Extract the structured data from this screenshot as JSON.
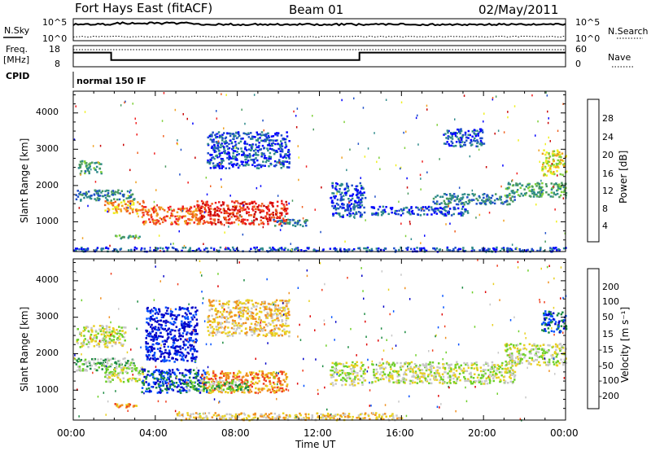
{
  "header": {
    "station": "Fort Hays East (fitACF)",
    "beam": "Beam 01",
    "date": "02/May/2011"
  },
  "noise_panel": {
    "left_label": "N.Sky",
    "right_label": "N.Search",
    "left_ticks": [
      "10^5",
      "10^0"
    ],
    "right_ticks": [
      "10^5",
      "10^0"
    ]
  },
  "freq_panel": {
    "left_label_1": "Freq.",
    "left_label_2": "[MHz]",
    "left_ticks": [
      "18",
      "8"
    ],
    "right_label": "Nave",
    "right_ticks": [
      "60",
      "0"
    ],
    "freq_steps": [
      {
        "hour": 0,
        "mhz": 15
      },
      {
        "hour": 1.85,
        "mhz": 15
      },
      {
        "hour": 1.85,
        "mhz": 10.8
      },
      {
        "hour": 13.95,
        "mhz": 10.8
      },
      {
        "hour": 13.95,
        "mhz": 15
      },
      {
        "hour": 24,
        "mhz": 15
      }
    ]
  },
  "cpid": {
    "label": "CPID",
    "value": "normal 150 IF"
  },
  "power_panel": {
    "ylabel": "Slant Range [km]",
    "yticks": [
      "4000",
      "3000",
      "2000",
      "1000"
    ],
    "colorbar_label": "Power [dB]",
    "colorbar_ticks": [
      "28",
      "24",
      "20",
      "16",
      "12",
      "8",
      "4"
    ],
    "colors": [
      "#0000ff",
      "#1e4fc8",
      "#2d8a8a",
      "#4a9a60",
      "#7fd03a",
      "#f0f020",
      "#f0a020",
      "#f06020",
      "#f02020",
      "#c80000"
    ]
  },
  "velocity_panel": {
    "ylabel": "Slant Range [km]",
    "yticks": [
      "4000",
      "3000",
      "2000",
      "1000"
    ],
    "colorbar_label": "Velocity [m s⁻¹]",
    "colorbar_ticks": [
      "200",
      "100",
      "50",
      "15",
      "-15",
      "-50",
      "-100",
      "-200"
    ],
    "colors": [
      "#0000c8",
      "#0050ff",
      "#1a8a40",
      "#6ed028",
      "#c8c8c8",
      "#e8d020",
      "#f09020",
      "#f04020",
      "#e00000"
    ]
  },
  "xaxis": {
    "ticks": [
      "00:00",
      "04:00",
      "08:00",
      "12:00",
      "16:00",
      "20:00",
      "00:00"
    ],
    "label": "Time UT"
  },
  "chart_data": {
    "type": "heatmap",
    "x_range_hours": [
      0,
      24
    ],
    "y_range_km": [
      180,
      4600
    ],
    "power_regions": [
      {
        "t0": 0.2,
        "t1": 1.4,
        "r0": 2350,
        "r1": 2700,
        "level": 3
      },
      {
        "t0": 0.1,
        "t1": 3.0,
        "r0": 1600,
        "r1": 1900,
        "level": 2
      },
      {
        "t0": 1.5,
        "t1": 3.4,
        "r0": 1250,
        "r1": 1600,
        "level": 6
      },
      {
        "t0": 3.3,
        "t1": 6.3,
        "r0": 950,
        "r1": 1450,
        "level": 7
      },
      {
        "t0": 6.0,
        "t1": 10.4,
        "r0": 950,
        "r1": 1600,
        "level": 8
      },
      {
        "t0": 9.6,
        "t1": 11.4,
        "r0": 900,
        "r1": 1100,
        "level": 2
      },
      {
        "t0": 12.5,
        "t1": 14.2,
        "r0": 1150,
        "r1": 2100,
        "level": 1
      },
      {
        "t0": 14.5,
        "t1": 19.2,
        "r0": 1200,
        "r1": 1450,
        "level": 1
      },
      {
        "t0": 17.5,
        "t1": 21.5,
        "r0": 1500,
        "r1": 1800,
        "level": 2
      },
      {
        "t0": 21.0,
        "t1": 24.0,
        "r0": 1700,
        "r1": 2100,
        "level": 3
      },
      {
        "t0": 22.8,
        "t1": 24.0,
        "r0": 2300,
        "r1": 3000,
        "level": 5
      },
      {
        "t0": 18.0,
        "t1": 20.0,
        "r0": 3100,
        "r1": 3600,
        "level": 1
      },
      {
        "t0": 2.0,
        "t1": 3.2,
        "r0": 550,
        "r1": 650,
        "level": 3
      },
      {
        "t0": 6.5,
        "t1": 10.5,
        "r0": 2500,
        "r1": 3500,
        "level": 1
      },
      {
        "t0": 0.0,
        "t1": 24.0,
        "r0": 200,
        "r1": 320,
        "level": 1
      }
    ],
    "velocity_regions": [
      {
        "t0": 0.1,
        "t1": 2.5,
        "r0": 2200,
        "r1": 2800,
        "level": 4
      },
      {
        "t0": 0.1,
        "t1": 3.0,
        "r0": 1550,
        "r1": 1900,
        "level": 3
      },
      {
        "t0": 1.5,
        "t1": 3.4,
        "r0": 1250,
        "r1": 1650,
        "level": 4
      },
      {
        "t0": 3.3,
        "t1": 6.5,
        "r0": 950,
        "r1": 1600,
        "level": 1
      },
      {
        "t0": 3.5,
        "t1": 6.0,
        "r0": 1800,
        "r1": 3300,
        "level": 0
      },
      {
        "t0": 6.2,
        "t1": 10.4,
        "r0": 950,
        "r1": 1550,
        "level": 6
      },
      {
        "t0": 5.5,
        "t1": 8.5,
        "r0": 1000,
        "r1": 1300,
        "level": 3
      },
      {
        "t0": 12.5,
        "t1": 14.2,
        "r0": 1150,
        "r1": 1800,
        "level": 4
      },
      {
        "t0": 14.5,
        "t1": 21.5,
        "r0": 1200,
        "r1": 1800,
        "level": 4
      },
      {
        "t0": 21.0,
        "t1": 24.0,
        "r0": 1700,
        "r1": 2300,
        "level": 4
      },
      {
        "t0": 22.8,
        "t1": 24.0,
        "r0": 2600,
        "r1": 3200,
        "level": 1
      },
      {
        "t0": 2.0,
        "t1": 3.2,
        "r0": 550,
        "r1": 650,
        "level": 6
      },
      {
        "t0": 6.5,
        "t1": 10.5,
        "r0": 2500,
        "r1": 3500,
        "level": 5
      },
      {
        "t0": 5.0,
        "t1": 16.0,
        "r0": 200,
        "r1": 400,
        "level": 5
      }
    ]
  }
}
